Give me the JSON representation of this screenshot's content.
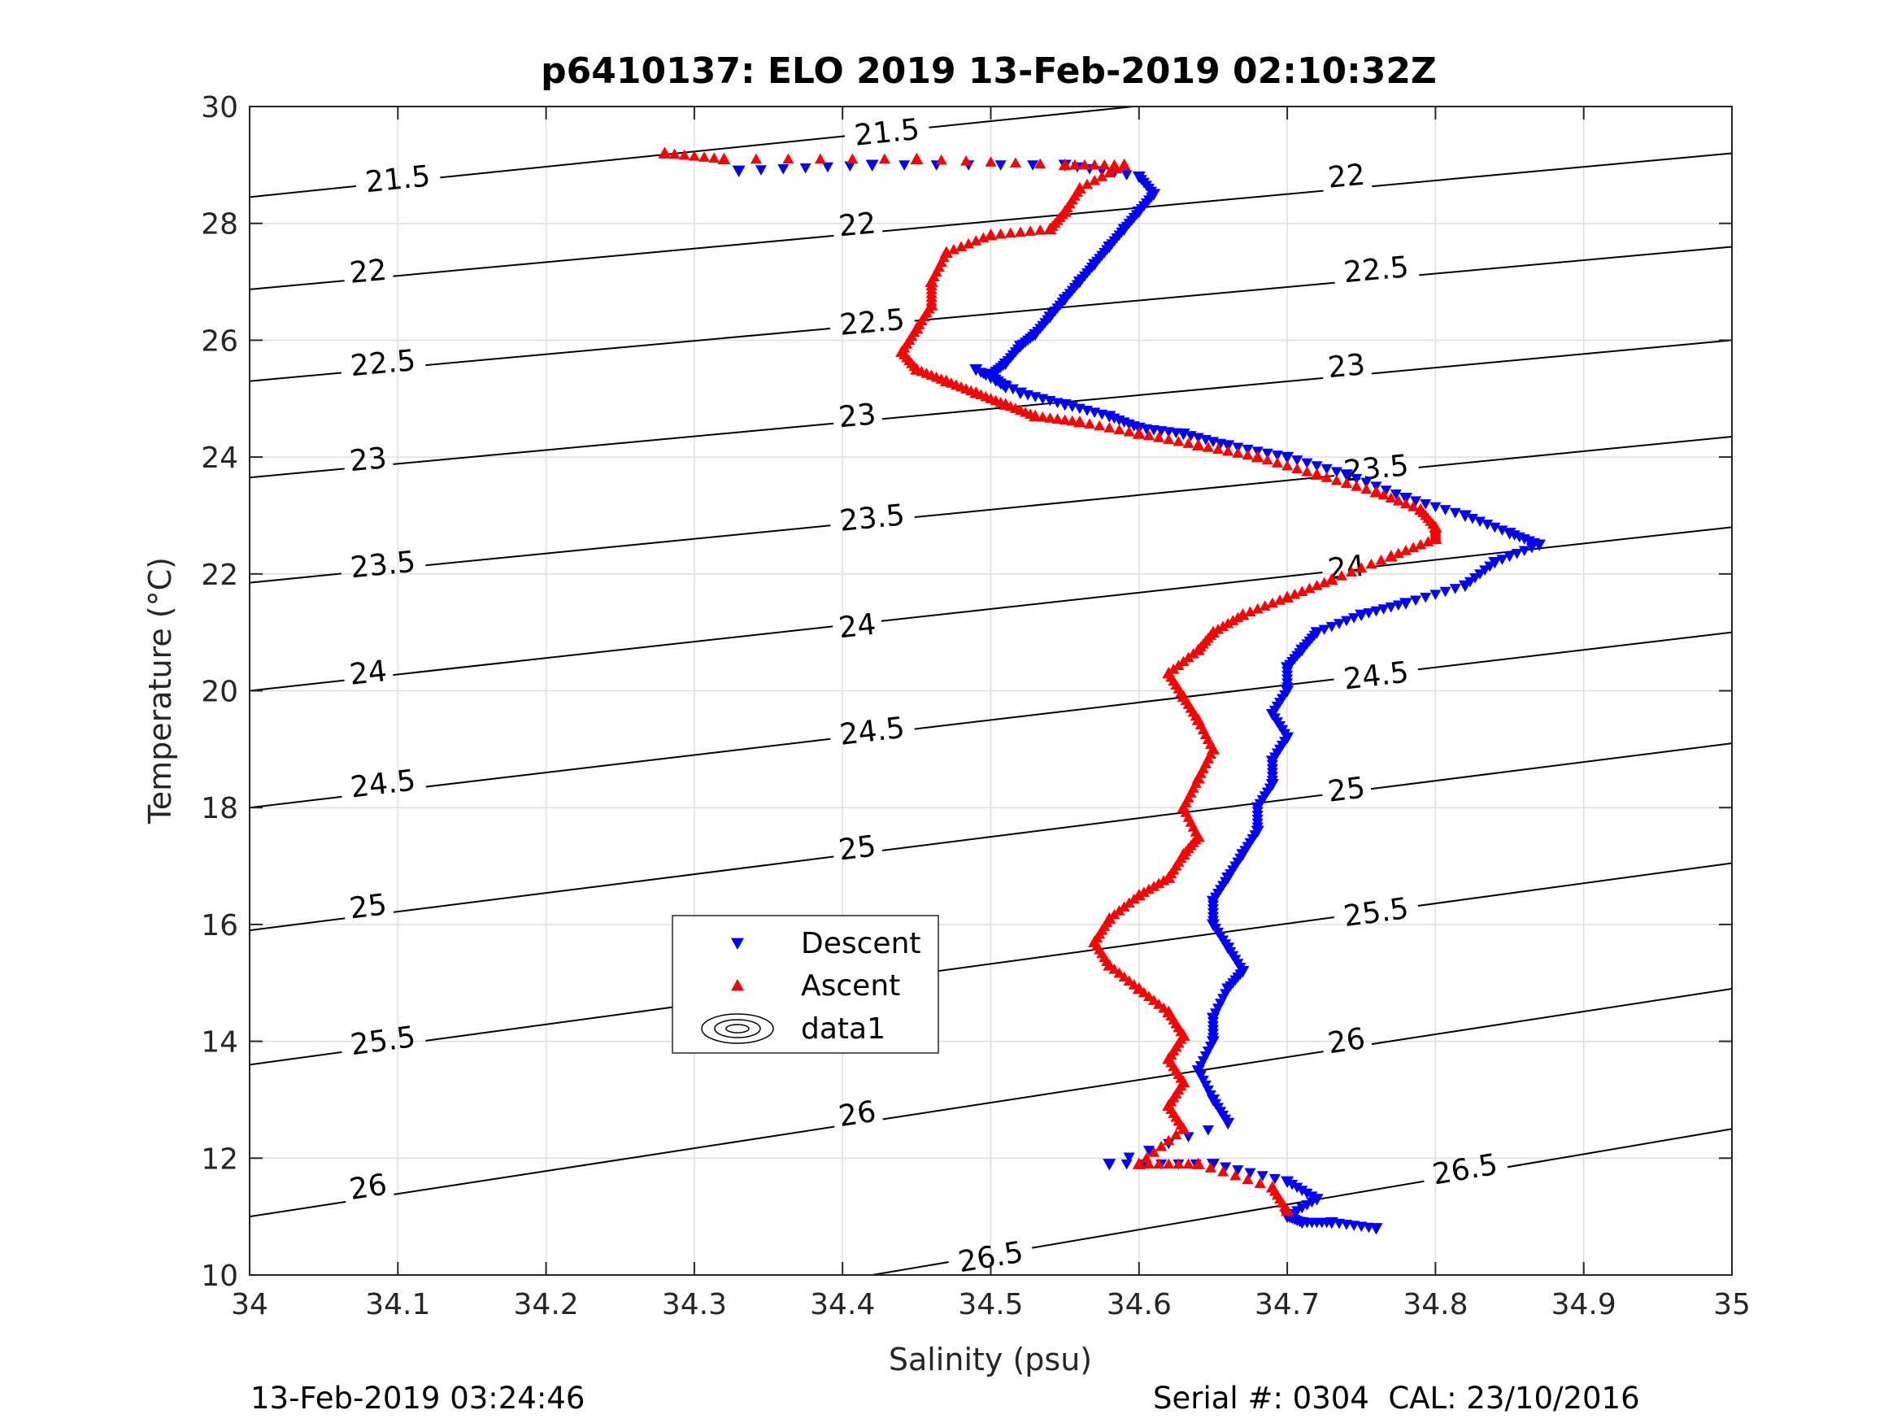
{
  "chart_data": {
    "type": "scatter",
    "title": "p6410137: ELO 2019 13-Feb-2019 02:10:32Z",
    "xlabel": "Salinity (psu)",
    "ylabel": "Temperature (°C)",
    "xlim": [
      34,
      35
    ],
    "ylim": [
      10,
      30
    ],
    "xticks": [
      34,
      34.1,
      34.2,
      34.3,
      34.4,
      34.5,
      34.6,
      34.7,
      34.8,
      34.9,
      35
    ],
    "xtick_labels": [
      "34",
      "34.1",
      "34.2",
      "34.3",
      "34.4",
      "34.5",
      "34.6",
      "34.7",
      "34.8",
      "34.9",
      "35"
    ],
    "yticks": [
      10,
      12,
      14,
      16,
      18,
      20,
      22,
      24,
      26,
      28,
      30
    ],
    "ytick_labels": [
      "10",
      "12",
      "14",
      "16",
      "18",
      "20",
      "22",
      "24",
      "26",
      "28",
      "30"
    ],
    "grid": true,
    "legend": {
      "placement": "lower-left-center",
      "entries": [
        {
          "label": "Descent",
          "marker": "triangle-down",
          "color": "#0000ff"
        },
        {
          "label": "Ascent",
          "marker": "triangle-up",
          "color": "#ff0000"
        },
        {
          "label": "data1",
          "marker": "contour",
          "color": "#000000"
        }
      ]
    },
    "series": [
      {
        "name": "Descent",
        "color": "#0000ff",
        "marker": "triangle-down",
        "x": [
          34.33,
          34.42,
          34.55,
          34.6,
          34.61,
          34.6,
          34.59,
          34.58,
          34.57,
          34.56,
          34.55,
          34.54,
          34.53,
          34.52,
          34.51,
          34.5,
          34.51,
          34.49,
          34.52,
          34.55,
          34.58,
          34.6,
          34.63,
          34.66,
          34.7,
          34.74,
          34.78,
          34.82,
          34.85,
          34.87,
          34.84,
          34.82,
          34.78,
          34.75,
          34.72,
          34.71,
          34.7,
          34.7,
          34.69,
          34.7,
          34.69,
          34.69,
          34.68,
          34.68,
          34.67,
          34.66,
          34.65,
          34.65,
          34.66,
          34.67,
          34.66,
          34.65,
          34.65,
          34.64,
          34.65,
          34.66,
          34.58,
          34.65,
          34.7,
          34.72,
          34.7,
          34.71,
          34.73,
          34.76
        ],
        "y": [
          28.9,
          29.0,
          29.0,
          28.8,
          28.5,
          28.2,
          27.9,
          27.6,
          27.3,
          27.0,
          26.7,
          26.4,
          26.1,
          25.9,
          25.6,
          25.4,
          25.2,
          25.5,
          25.1,
          24.9,
          24.7,
          24.5,
          24.4,
          24.2,
          24.0,
          23.7,
          23.3,
          23.0,
          22.7,
          22.5,
          22.2,
          21.8,
          21.5,
          21.3,
          21.0,
          20.7,
          20.4,
          20.0,
          19.6,
          19.2,
          18.8,
          18.4,
          18.0,
          17.6,
          17.2,
          16.8,
          16.4,
          16.0,
          15.6,
          15.2,
          14.9,
          14.4,
          14.0,
          13.5,
          13.0,
          12.6,
          11.9,
          11.9,
          11.6,
          11.3,
          11.0,
          10.9,
          10.9,
          10.8
        ]
      },
      {
        "name": "Ascent",
        "color": "#ff0000",
        "marker": "triangle-up",
        "x": [
          34.28,
          34.32,
          34.45,
          34.55,
          34.59,
          34.56,
          34.55,
          34.54,
          34.5,
          34.47,
          34.46,
          34.46,
          34.45,
          34.44,
          34.45,
          34.47,
          34.49,
          34.51,
          34.53,
          34.56,
          34.6,
          34.64,
          34.68,
          34.72,
          34.76,
          34.79,
          34.8,
          34.8,
          34.77,
          34.73,
          34.7,
          34.67,
          34.65,
          34.64,
          34.62,
          34.63,
          34.64,
          34.65,
          34.64,
          34.63,
          34.64,
          34.63,
          34.62,
          34.6,
          34.58,
          34.57,
          34.58,
          34.6,
          34.62,
          34.63,
          34.62,
          34.63,
          34.62,
          34.63,
          34.6,
          34.64,
          34.69,
          34.7
        ],
        "y": [
          29.2,
          29.1,
          29.1,
          29.0,
          29.0,
          28.6,
          28.2,
          27.9,
          27.8,
          27.5,
          27.0,
          26.6,
          26.2,
          25.8,
          25.5,
          25.3,
          25.1,
          24.9,
          24.7,
          24.6,
          24.4,
          24.2,
          24.0,
          23.7,
          23.4,
          23.1,
          22.8,
          22.6,
          22.3,
          21.9,
          21.6,
          21.3,
          21.0,
          20.7,
          20.3,
          19.9,
          19.5,
          19.0,
          18.5,
          18.0,
          17.5,
          17.2,
          16.8,
          16.5,
          16.1,
          15.7,
          15.3,
          14.9,
          14.5,
          14.1,
          13.7,
          13.3,
          12.9,
          12.5,
          11.9,
          11.9,
          11.5,
          11.1
        ]
      },
      {
        "name": "data1",
        "type": "contour",
        "color": "#000000",
        "levels": [
          21.5,
          22,
          22.5,
          23,
          23.5,
          24,
          24.5,
          25,
          25.5,
          26,
          26.5
        ],
        "lines": [
          {
            "level": 21.5,
            "points": [
              [
                34,
                28.45
              ],
              [
                35,
                31.05
              ]
            ],
            "labels": [
              [
                34.1,
                28.75,
                "21.5"
              ],
              [
                34.43,
                29.55,
                "21.5"
              ]
            ]
          },
          {
            "level": 22,
            "points": [
              [
                34,
                26.87
              ],
              [
                35,
                29.2
              ]
            ],
            "labels": [
              [
                34.08,
                27.17,
                "22"
              ],
              [
                34.41,
                27.97,
                "22"
              ],
              [
                34.74,
                28.8,
                "22"
              ]
            ]
          },
          {
            "level": 22.5,
            "points": [
              [
                34,
                25.3
              ],
              [
                35,
                27.6
              ]
            ],
            "labels": [
              [
                34.09,
                25.6,
                "22.5"
              ],
              [
                34.42,
                26.3,
                "22.5"
              ],
              [
                34.76,
                27.2,
                "22.5"
              ]
            ]
          },
          {
            "level": 23,
            "points": [
              [
                34,
                23.65
              ],
              [
                35,
                26.0
              ]
            ],
            "labels": [
              [
                34.08,
                23.95,
                "23"
              ],
              [
                34.41,
                24.7,
                "23"
              ],
              [
                34.74,
                25.55,
                "23"
              ]
            ]
          },
          {
            "level": 23.5,
            "points": [
              [
                34,
                21.85
              ],
              [
                35,
                24.35
              ]
            ],
            "labels": [
              [
                34.09,
                22.15,
                "23.5"
              ],
              [
                34.42,
                22.95,
                "23.5"
              ],
              [
                34.76,
                23.8,
                "23.5"
              ]
            ]
          },
          {
            "level": 24,
            "points": [
              [
                34,
                20.0
              ],
              [
                35,
                22.8
              ]
            ],
            "labels": [
              [
                34.08,
                20.3,
                "24"
              ],
              [
                34.41,
                21.1,
                "24"
              ],
              [
                34.74,
                22.1,
                "24"
              ]
            ]
          },
          {
            "level": 24.5,
            "points": [
              [
                34,
                18.0
              ],
              [
                35,
                21.0
              ]
            ],
            "labels": [
              [
                34.09,
                18.4,
                "24.5"
              ],
              [
                34.42,
                19.3,
                "24.5"
              ],
              [
                34.76,
                20.25,
                "24.5"
              ]
            ]
          },
          {
            "level": 25,
            "points": [
              [
                34,
                15.9
              ],
              [
                35,
                19.1
              ]
            ],
            "labels": [
              [
                34.08,
                16.3,
                "25"
              ],
              [
                34.41,
                17.3,
                "25"
              ],
              [
                34.74,
                18.3,
                "25"
              ]
            ]
          },
          {
            "level": 25.5,
            "points": [
              [
                34,
                13.6
              ],
              [
                35,
                17.05
              ]
            ],
            "labels": [
              [
                34.09,
                14.0,
                "25.5"
              ],
              [
                34.42,
                15.1,
                "25.5"
              ],
              [
                34.76,
                16.2,
                "25.5"
              ]
            ]
          },
          {
            "level": 26,
            "points": [
              [
                34,
                11.0
              ],
              [
                35,
                14.9
              ]
            ],
            "labels": [
              [
                34.08,
                11.5,
                "26"
              ],
              [
                34.41,
                12.75,
                "26"
              ],
              [
                34.74,
                14.0,
                "26"
              ]
            ]
          },
          {
            "level": 26.5,
            "points": [
              [
                34.42,
                10.0
              ],
              [
                35,
                12.5
              ]
            ],
            "labels": [
              [
                34.5,
                10.3,
                "26.5"
              ],
              [
                34.82,
                11.8,
                "26.5"
              ]
            ]
          }
        ]
      }
    ]
  },
  "footer": {
    "left": "13-Feb-2019 03:24:46",
    "right": "Serial #: 0304  CAL: 23/10/2016"
  }
}
